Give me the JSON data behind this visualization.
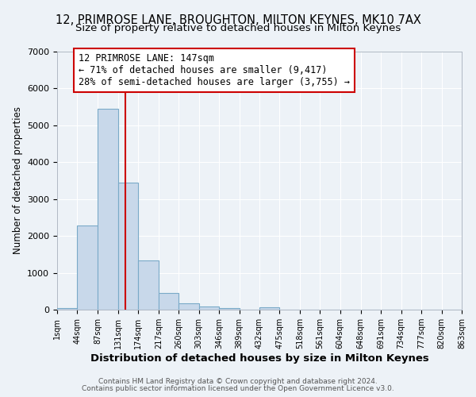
{
  "title1": "12, PRIMROSE LANE, BROUGHTON, MILTON KEYNES, MK10 7AX",
  "title2": "Size of property relative to detached houses in Milton Keynes",
  "xlabel": "Distribution of detached houses by size in Milton Keynes",
  "ylabel": "Number of detached properties",
  "bar_color": "#c8d8ea",
  "bar_edge_color": "#7aaac8",
  "bin_edges": [
    1,
    44,
    87,
    131,
    174,
    217,
    260,
    303,
    346,
    389,
    432,
    475,
    518,
    561,
    604,
    648,
    691,
    734,
    777,
    820,
    863
  ],
  "bar_heights": [
    50,
    2280,
    5450,
    3440,
    1340,
    450,
    175,
    80,
    50,
    0,
    55,
    0,
    0,
    0,
    0,
    0,
    0,
    0,
    0,
    0
  ],
  "vline_x": 147,
  "vline_color": "#cc0000",
  "annotation_title": "12 PRIMROSE LANE: 147sqm",
  "annotation_line1": "← 71% of detached houses are smaller (9,417)",
  "annotation_line2": "28% of semi-detached houses are larger (3,755) →",
  "annotation_box_facecolor": "#ffffff",
  "annotation_box_edgecolor": "#cc0000",
  "ylim": [
    0,
    7000
  ],
  "yticks": [
    0,
    1000,
    2000,
    3000,
    4000,
    5000,
    6000,
    7000
  ],
  "tick_labels": [
    "1sqm",
    "44sqm",
    "87sqm",
    "131sqm",
    "174sqm",
    "217sqm",
    "260sqm",
    "303sqm",
    "346sqm",
    "389sqm",
    "432sqm",
    "475sqm",
    "518sqm",
    "561sqm",
    "604sqm",
    "648sqm",
    "691sqm",
    "734sqm",
    "777sqm",
    "820sqm",
    "863sqm"
  ],
  "footer1": "Contains HM Land Registry data © Crown copyright and database right 2024.",
  "footer2": "Contains public sector information licensed under the Open Government Licence v3.0.",
  "bg_color": "#edf2f7",
  "grid_color": "#ffffff",
  "title1_fontsize": 10.5,
  "title2_fontsize": 9.5,
  "ann_fontsize": 8.5,
  "xlabel_fontsize": 9.5,
  "ylabel_fontsize": 8.5,
  "footer_fontsize": 6.5,
  "ytick_fontsize": 8,
  "xtick_fontsize": 7
}
